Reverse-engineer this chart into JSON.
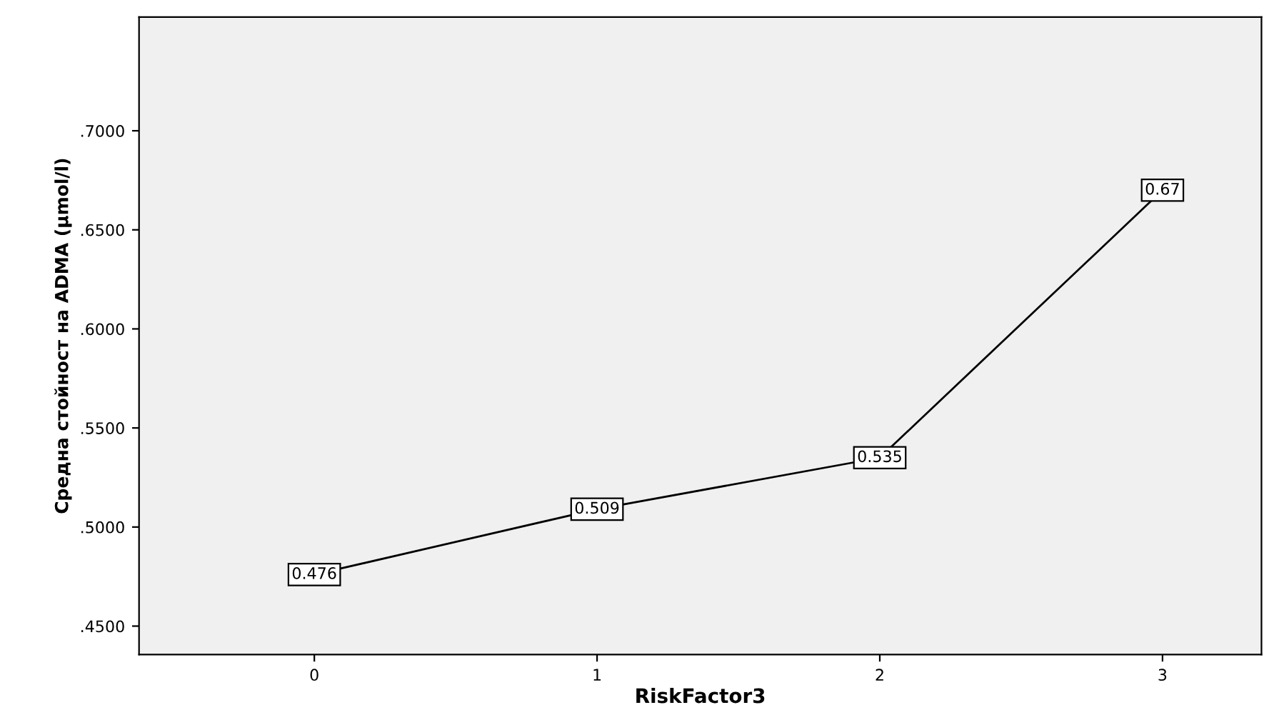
{
  "chart_data": {
    "type": "line",
    "xlabel": "RiskFactor3",
    "ylabel": "Средна стойност на ADMA (µmol/l)",
    "x": [
      0,
      1,
      2,
      3
    ],
    "series": [
      {
        "color": "#000000",
        "values": [
          0.476,
          0.509,
          0.535,
          0.67
        ]
      }
    ],
    "data_labels": true,
    "xlim": [
      -0.62,
      3.35
    ],
    "xticks": [
      0,
      1,
      2,
      3
    ],
    "ylim": [
      0.4356,
      0.7574
    ],
    "yticks": [
      {
        "value": 0.45,
        "label": ".4500"
      },
      {
        "value": 0.5,
        "label": ".5000"
      },
      {
        "value": 0.55,
        "label": ".5500"
      },
      {
        "value": 0.6,
        "label": ".6000"
      },
      {
        "value": 0.65,
        "label": ".6500"
      },
      {
        "value": 0.7,
        "label": ".7000"
      }
    ],
    "grid": false,
    "legend": false,
    "marker": "square",
    "line_style": "solid"
  }
}
